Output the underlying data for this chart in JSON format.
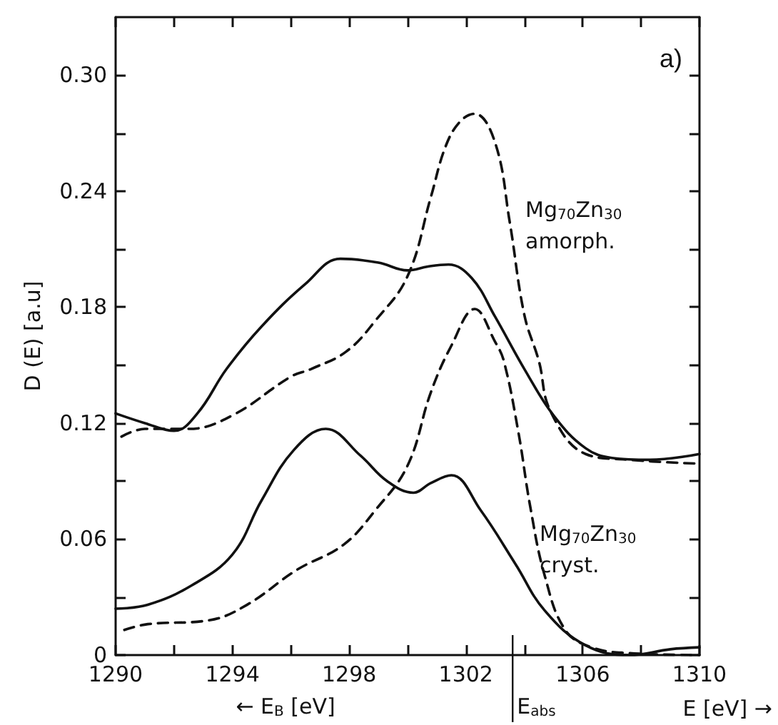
{
  "chart_data": {
    "type": "line",
    "xlabel": "E [eV] →",
    "ylabel": "D (E) [a.u]",
    "annotations": [
      "a)",
      "← E$_{B}$ [eV]",
      "Mg$_{70}$Zn$_{30}$\namorph.",
      "Mg$_{70}$Zn$_{30}$\ncryst."
    ],
    "xlim": [
      1290,
      1310
    ],
    "xticks": [
      1290,
      {
        "value": 1292,
        "label": null
      },
      1294,
      {
        "value": 1296,
        "label": null
      },
      1298,
      {
        "value": 1300,
        "label": null
      },
      1302,
      {
        "value": 1304,
        "label": null
      },
      1306,
      {
        "value": 1308,
        "label": null
      },
      1310
    ],
    "ylim": [
      0,
      0.33
    ],
    "yticks": [
      0,
      {
        "value": 0.03,
        "label": null
      },
      0.06,
      {
        "value": 0.09,
        "label": null
      },
      0.12,
      {
        "value": 0.15,
        "label": null
      },
      0.18,
      {
        "value": 0.21,
        "label": null
      },
      0.24,
      {
        "value": 0.27,
        "label": null
      },
      {
        "value": 0.3,
        "label": "0.30"
      }
    ],
    "ref_lines": [
      {
        "axis": "x",
        "value": 1303.6,
        "label": "E$_{abs}$"
      }
    ],
    "grid": false,
    "marker": "none",
    "series": [
      {
        "color": "#111111",
        "line_style": "solid",
        "x": [
          1290,
          1291,
          1292,
          1292.8,
          1293.8,
          1295,
          1296.5,
          1297.7,
          1299,
          1300,
          1300.7,
          1301.4,
          1302.2,
          1303,
          1304,
          1305,
          1306.1,
          1307,
          1308.3,
          1310
        ],
        "values": [
          0.125,
          0.12,
          0.116,
          0.125,
          0.148,
          0.17,
          0.192,
          0.205,
          0.203,
          0.199,
          0.201,
          0.202,
          0.195,
          0.175,
          0.148,
          0.124,
          0.107,
          0.102,
          0.101,
          0.104
        ]
      },
      {
        "color": "#111111",
        "line_style": "dashed",
        "x": [
          1290.2,
          1291,
          1292.5,
          1294,
          1296,
          1296.7,
          1297.9,
          1298.9,
          1300,
          1300.8,
          1301.3,
          1301.8,
          1302.3,
          1303,
          1303.5,
          1304,
          1304.5,
          1304.9,
          1306.1,
          1307.6,
          1310
        ],
        "values": [
          0.113,
          0.117,
          0.117,
          0.124,
          0.144,
          0.148,
          0.157,
          0.173,
          0.196,
          0.237,
          0.263,
          0.276,
          0.28,
          0.265,
          0.224,
          0.176,
          0.152,
          0.126,
          0.104,
          0.101,
          0.099
        ]
      },
      {
        "color": "#111111",
        "line_style": "solid",
        "x": [
          1290,
          1291.1,
          1292.6,
          1294,
          1295,
          1296.1,
          1297.2,
          1298.4,
          1299.3,
          1300.2,
          1300.8,
          1301.5,
          1302.5,
          1303.7,
          1304.7,
          1306.1,
          1307.6,
          1309,
          1310
        ],
        "values": [
          0.024,
          0.026,
          0.036,
          0.052,
          0.08,
          0.106,
          0.117,
          0.103,
          0.09,
          0.084,
          0.089,
          0.093,
          0.075,
          0.047,
          0.023,
          0.005,
          0,
          0.003,
          0.004
        ]
      },
      {
        "color": "#111111",
        "line_style": "dashed",
        "x": [
          1290.3,
          1291.1,
          1293.2,
          1294.5,
          1296.2,
          1297.8,
          1298.9,
          1300,
          1300.8,
          1301.5,
          1302.3,
          1303,
          1303.3,
          1303.8,
          1304.2,
          1304.7,
          1305.4,
          1306.3,
          1307.6,
          1310
        ],
        "values": [
          0.013,
          0.016,
          0.018,
          0.026,
          0.044,
          0.057,
          0.075,
          0.098,
          0.136,
          0.16,
          0.179,
          0.162,
          0.152,
          0.115,
          0.077,
          0.041,
          0.013,
          0.004,
          0.001,
          0
        ]
      }
    ]
  }
}
